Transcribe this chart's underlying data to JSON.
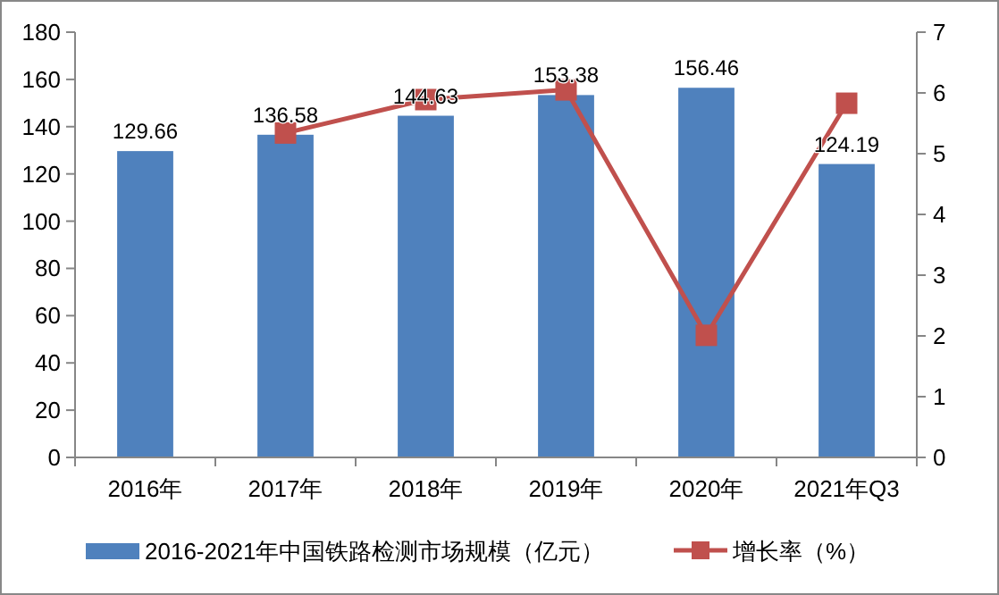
{
  "chart_data": {
    "type": "bar",
    "categories": [
      "2016年",
      "2017年",
      "2018年",
      "2019年",
      "2020年",
      "2021年Q3"
    ],
    "series": [
      {
        "name": "2016-2021年中国铁路检测市场规模（亿元）",
        "color": "#4f81bd",
        "values": [
          129.66,
          136.58,
          144.63,
          153.38,
          156.46,
          124.19
        ],
        "value_labels": [
          "129.66",
          "136.58",
          "144.63",
          "153.38",
          "156.46",
          "124.19"
        ]
      },
      {
        "name": "增长率（%）",
        "type": "line",
        "axis": "y2",
        "color": "#c0504d",
        "marker": "square",
        "values": [
          null,
          5.34,
          5.89,
          6.05,
          2.01,
          5.83
        ]
      }
    ],
    "ylim": [
      0,
      180
    ],
    "yticks": [
      0,
      20,
      40,
      60,
      80,
      100,
      120,
      140,
      160,
      180
    ],
    "y2lim": [
      0,
      7
    ],
    "y2ticks": [
      0,
      1,
      2,
      3,
      4,
      5,
      6,
      7
    ],
    "legend": "bottom",
    "grid": false
  }
}
